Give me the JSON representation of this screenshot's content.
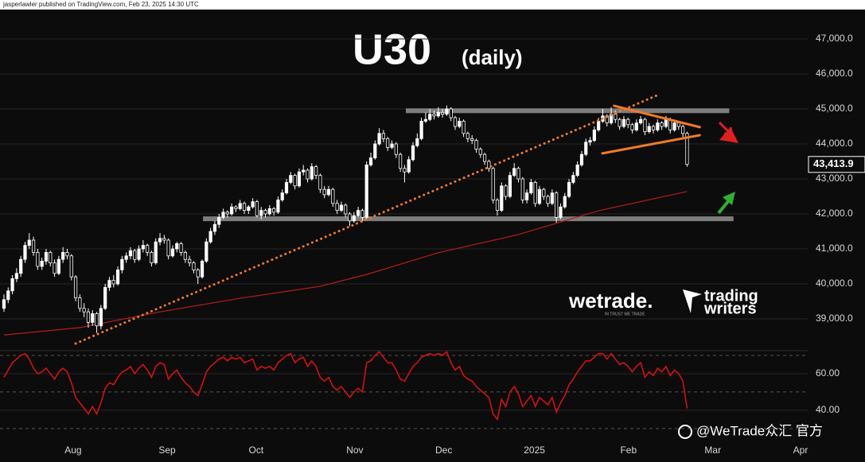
{
  "header": "jasperlawler published on TradingView.com, Feb 23, 2025 14:30 UTC",
  "branding": {
    "wetrade": "wetrade.",
    "tagline": "IN TRUST WE TRADE",
    "trading": "trading",
    "writers": "writers",
    "watermark": "@WeTrade众汇 官方"
  },
  "chart_data": {
    "type": "candlestick",
    "title": "U30",
    "subtitle": "(daily)",
    "xlim": [
      -0.94,
      190.6
    ],
    "xticks": [
      {
        "value": 16.4,
        "label": "Aug"
      },
      {
        "value": 38.7,
        "label": "Sep"
      },
      {
        "value": 59.8,
        "label": "Oct"
      },
      {
        "value": 83.2,
        "label": "Nov"
      },
      {
        "value": 104.3,
        "label": "Dec"
      },
      {
        "value": 125.8,
        "label": "2025"
      },
      {
        "value": 148.1,
        "label": "Feb"
      },
      {
        "value": 168.1,
        "label": "Mar"
      },
      {
        "value": 188.9,
        "label": "Apr"
      }
    ],
    "ylim": [
      38100,
      47600
    ],
    "yticks": [
      {
        "value": 39000,
        "label": "39,000.0"
      },
      {
        "value": 40000,
        "label": "40,000.0"
      },
      {
        "value": 41000,
        "label": "41,000.0"
      },
      {
        "value": 42000,
        "label": "42,000.0"
      },
      {
        "value": 43000,
        "label": "43,000.0"
      },
      {
        "value": 44000,
        "label": "44,000.0"
      },
      {
        "value": 45000,
        "label": "45,000.0"
      },
      {
        "value": 46000,
        "label": "46,000.0"
      },
      {
        "value": 47000,
        "label": "47,000.0"
      }
    ],
    "grid": true,
    "up_color": "#ffffff",
    "down_color": "#000000",
    "wick_color": "#ffffff",
    "last_label": "43,413.9",
    "ohlc": [
      [
        39300,
        39700,
        39200,
        39550
      ],
      [
        39550,
        39900,
        39450,
        39800
      ],
      [
        39800,
        40250,
        39700,
        40150
      ],
      [
        40150,
        40450,
        40050,
        40300
      ],
      [
        40300,
        40800,
        40200,
        40700
      ],
      [
        40700,
        41200,
        40600,
        41100
      ],
      [
        41100,
        41450,
        41000,
        41250
      ],
      [
        41250,
        41350,
        40800,
        40900
      ],
      [
        40900,
        41000,
        40400,
        40500
      ],
      [
        40500,
        40750,
        40400,
        40650
      ],
      [
        40650,
        41000,
        40550,
        40900
      ],
      [
        40900,
        40950,
        40500,
        40600
      ],
      [
        40600,
        40700,
        40200,
        40300
      ],
      [
        40300,
        40800,
        40250,
        40700
      ],
      [
        40700,
        41050,
        40600,
        40900
      ],
      [
        40900,
        41000,
        40700,
        40800
      ],
      [
        40800,
        40850,
        40100,
        40200
      ],
      [
        40200,
        40250,
        39500,
        39600
      ],
      [
        39600,
        39700,
        39200,
        39300
      ],
      [
        39300,
        39450,
        39050,
        39200
      ],
      [
        39200,
        39300,
        38750,
        38900
      ],
      [
        38900,
        39250,
        38800,
        39150
      ],
      [
        39150,
        39200,
        38600,
        38800
      ],
      [
        38800,
        39400,
        38700,
        39300
      ],
      [
        39300,
        40000,
        39250,
        39900
      ],
      [
        39900,
        40200,
        39800,
        40100
      ],
      [
        40100,
        40250,
        39900,
        40000
      ],
      [
        40000,
        40500,
        39950,
        40400
      ],
      [
        40400,
        40800,
        40300,
        40700
      ],
      [
        40700,
        40900,
        40600,
        40800
      ],
      [
        40800,
        41050,
        40700,
        40950
      ],
      [
        40950,
        41000,
        40600,
        40700
      ],
      [
        40700,
        41100,
        40650,
        41000
      ],
      [
        41000,
        41250,
        40900,
        41100
      ],
      [
        41100,
        41150,
        40800,
        40900
      ],
      [
        40900,
        40950,
        40500,
        40600
      ],
      [
        40600,
        41300,
        40550,
        41200
      ],
      [
        41200,
        41450,
        41100,
        41300
      ],
      [
        41300,
        41400,
        41150,
        41250
      ],
      [
        41250,
        41300,
        40700,
        40800
      ],
      [
        40800,
        41100,
        40750,
        41000
      ],
      [
        41000,
        41200,
        40900,
        41150
      ],
      [
        41150,
        41200,
        40800,
        40900
      ],
      [
        40900,
        40950,
        40600,
        40700
      ],
      [
        40700,
        40800,
        40500,
        40600
      ],
      [
        40600,
        40650,
        40300,
        40400
      ],
      [
        40400,
        40450,
        40000,
        40200
      ],
      [
        40200,
        40700,
        40150,
        40650
      ],
      [
        40650,
        41300,
        40600,
        41200
      ],
      [
        41200,
        41600,
        41150,
        41500
      ],
      [
        41500,
        41800,
        41400,
        41700
      ],
      [
        41700,
        42000,
        41600,
        41900
      ],
      [
        41900,
        42150,
        41850,
        42050
      ],
      [
        42050,
        42100,
        41900,
        42000
      ],
      [
        42000,
        42300,
        41950,
        42200
      ],
      [
        42200,
        42250,
        42050,
        42150
      ],
      [
        42150,
        42400,
        42100,
        42300
      ],
      [
        42300,
        42350,
        42000,
        42100
      ],
      [
        42100,
        42250,
        42000,
        42200
      ],
      [
        42200,
        42450,
        42150,
        42350
      ],
      [
        42350,
        42400,
        41900,
        41950
      ],
      [
        41950,
        42200,
        41850,
        42100
      ],
      [
        42100,
        42150,
        41900,
        42000
      ],
      [
        42000,
        42250,
        41950,
        42150
      ],
      [
        42150,
        42200,
        41950,
        42050
      ],
      [
        42050,
        42500,
        42000,
        42400
      ],
      [
        42400,
        42700,
        42350,
        42600
      ],
      [
        42600,
        43000,
        42550,
        42900
      ],
      [
        42900,
        43200,
        42850,
        43100
      ],
      [
        43100,
        43150,
        42700,
        42800
      ],
      [
        42800,
        43300,
        42750,
        43200
      ],
      [
        43200,
        43400,
        43100,
        43250
      ],
      [
        43250,
        43300,
        42900,
        43000
      ],
      [
        43000,
        43450,
        42950,
        43350
      ],
      [
        43350,
        43400,
        43000,
        43100
      ],
      [
        43100,
        43150,
        42600,
        42700
      ],
      [
        42700,
        42800,
        42450,
        42550
      ],
      [
        42550,
        42800,
        42500,
        42700
      ],
      [
        42700,
        42750,
        42200,
        42300
      ],
      [
        42300,
        42400,
        42000,
        42100
      ],
      [
        42100,
        42350,
        42050,
        42250
      ],
      [
        42250,
        42300,
        41900,
        42000
      ],
      [
        42000,
        42050,
        41650,
        41800
      ],
      [
        41800,
        42050,
        41750,
        41950
      ],
      [
        41950,
        42200,
        41900,
        42100
      ],
      [
        42100,
        42150,
        41800,
        41900
      ],
      [
        41900,
        43500,
        41850,
        43400
      ],
      [
        43400,
        43750,
        43350,
        43600
      ],
      [
        43600,
        44100,
        43550,
        44000
      ],
      [
        44000,
        44450,
        43950,
        44300
      ],
      [
        44300,
        44400,
        44050,
        44150
      ],
      [
        44150,
        44200,
        43800,
        43900
      ],
      [
        43900,
        44100,
        43850,
        44000
      ],
      [
        44000,
        44050,
        43600,
        43700
      ],
      [
        43700,
        43750,
        43200,
        43300
      ],
      [
        43300,
        43400,
        42900,
        43200
      ],
      [
        43200,
        43650,
        43150,
        43550
      ],
      [
        43550,
        44050,
        43500,
        43950
      ],
      [
        43950,
        44300,
        43900,
        44150
      ],
      [
        44150,
        44750,
        44100,
        44650
      ],
      [
        44650,
        44900,
        44600,
        44700
      ],
      [
        44700,
        45000,
        44650,
        44850
      ],
      [
        44850,
        44950,
        44700,
        44800
      ],
      [
        44800,
        45050,
        44750,
        44900
      ],
      [
        44900,
        45000,
        44750,
        44850
      ],
      [
        44850,
        45100,
        44800,
        45000
      ],
      [
        45000,
        45050,
        44650,
        44750
      ],
      [
        44750,
        44800,
        44400,
        44500
      ],
      [
        44500,
        44750,
        44450,
        44650
      ],
      [
        44650,
        44700,
        44200,
        44300
      ],
      [
        44300,
        44350,
        44050,
        44150
      ],
      [
        44150,
        44250,
        44000,
        44100
      ],
      [
        44100,
        44150,
        43750,
        43850
      ],
      [
        43850,
        43900,
        43600,
        43700
      ],
      [
        43700,
        43750,
        43400,
        43500
      ],
      [
        43500,
        43550,
        43200,
        43300
      ],
      [
        43300,
        43350,
        42300,
        42400
      ],
      [
        42400,
        42450,
        41950,
        42100
      ],
      [
        42100,
        42900,
        42050,
        42800
      ],
      [
        42800,
        42850,
        42400,
        42500
      ],
      [
        42500,
        43200,
        42450,
        43100
      ],
      [
        43100,
        43450,
        43050,
        43300
      ],
      [
        43300,
        43350,
        42900,
        43000
      ],
      [
        43000,
        43050,
        42300,
        42400
      ],
      [
        42400,
        42700,
        42300,
        42600
      ],
      [
        42600,
        43000,
        42550,
        42900
      ],
      [
        42900,
        42950,
        42200,
        42300
      ],
      [
        42300,
        42800,
        42250,
        42700
      ],
      [
        42700,
        42750,
        42400,
        42500
      ],
      [
        42500,
        42550,
        42200,
        42300
      ],
      [
        42300,
        42700,
        42250,
        42600
      ],
      [
        42600,
        42650,
        41750,
        41900
      ],
      [
        41900,
        42300,
        41850,
        42200
      ],
      [
        42200,
        42600,
        42150,
        42500
      ],
      [
        42500,
        43000,
        42450,
        42900
      ],
      [
        42900,
        43200,
        42850,
        43100
      ],
      [
        43100,
        43500,
        43050,
        43400
      ],
      [
        43400,
        43800,
        43350,
        43700
      ],
      [
        43700,
        44150,
        43650,
        44050
      ],
      [
        44050,
        44200,
        43950,
        44100
      ],
      [
        44100,
        44500,
        44050,
        44400
      ],
      [
        44400,
        44750,
        44350,
        44650
      ],
      [
        44650,
        45000,
        44600,
        44800
      ],
      [
        44800,
        44850,
        44500,
        44600
      ],
      [
        44600,
        45050,
        44550,
        44850
      ],
      [
        44850,
        44950,
        44600,
        44700
      ],
      [
        44700,
        44750,
        44400,
        44500
      ],
      [
        44500,
        44800,
        44450,
        44700
      ],
      [
        44700,
        44750,
        44450,
        44550
      ],
      [
        44550,
        44600,
        44300,
        44400
      ],
      [
        44400,
        44700,
        44350,
        44600
      ],
      [
        44600,
        44800,
        44550,
        44700
      ],
      [
        44700,
        44750,
        44250,
        44350
      ],
      [
        44350,
        44600,
        44300,
        44500
      ],
      [
        44500,
        44550,
        44300,
        44400
      ],
      [
        44400,
        44700,
        44350,
        44600
      ],
      [
        44600,
        44650,
        44400,
        44500
      ],
      [
        44500,
        44800,
        44450,
        44700
      ],
      [
        44700,
        44750,
        44300,
        44400
      ],
      [
        44400,
        44700,
        44350,
        44600
      ],
      [
        44600,
        44650,
        44400,
        44500
      ],
      [
        44500,
        44550,
        44200,
        44300
      ],
      [
        44300,
        44350,
        43350,
        43413.9
      ]
    ],
    "ma": {
      "color": "#b71c1c",
      "x": [
        0,
        18,
        37,
        56,
        75,
        86,
        103,
        122,
        141,
        162
      ],
      "values": [
        38540,
        38750,
        39200,
        39590,
        39930,
        40270,
        40890,
        41410,
        42090,
        42640
      ]
    },
    "level_color": "#7d7d7d",
    "levels": [
      {
        "value": 44950,
        "x": [
          95.3,
          172
        ]
      },
      {
        "value": 41860,
        "x": [
          47.2,
          173
        ]
      }
    ],
    "trend_color": "#f07a24",
    "trendlines": [
      {
        "x": [
          17,
          155.3
        ],
        "values": [
          38295,
          45410
        ],
        "dotted": true
      },
      {
        "x": [
          144.7,
          165
        ],
        "values": [
          45090,
          44480
        ],
        "dotted": false
      },
      {
        "x": [
          141.9,
          165
        ],
        "values": [
          43730,
          44250
        ],
        "dotted": false
      }
    ],
    "rsi": {
      "color": "#e01010",
      "ylim": [
        25.6,
        72.6
      ],
      "yticks": [
        {
          "value": 60,
          "label": "60.00"
        },
        {
          "value": 40,
          "label": "40.00"
        }
      ],
      "levels": [
        70,
        50,
        30
      ],
      "values": [
        58,
        62,
        66,
        68,
        70,
        71,
        68,
        63,
        60,
        61,
        63,
        60,
        57,
        61,
        63,
        61,
        55,
        47,
        44,
        41,
        38,
        42,
        38,
        44,
        52,
        55,
        54,
        58,
        61,
        62,
        64,
        60,
        63,
        65,
        62,
        58,
        64,
        66,
        65,
        57,
        60,
        62,
        58,
        55,
        53,
        50,
        48,
        54,
        61,
        64,
        66,
        68,
        69,
        67,
        69,
        68,
        69,
        66,
        67,
        68,
        62,
        64,
        63,
        64,
        62,
        66,
        68,
        70,
        71,
        66,
        68,
        69,
        64,
        67,
        64,
        58,
        56,
        58,
        53,
        51,
        53,
        50,
        47,
        50,
        52,
        50,
        66,
        67,
        70,
        72,
        69,
        66,
        66,
        62,
        57,
        56,
        60,
        64,
        66,
        69,
        70,
        71,
        70,
        71,
        70,
        72,
        66,
        62,
        64,
        59,
        57,
        56,
        53,
        51,
        49,
        47,
        38,
        35,
        46,
        42,
        50,
        53,
        49,
        42,
        45,
        48,
        42,
        47,
        45,
        43,
        47,
        39,
        44,
        48,
        54,
        57,
        61,
        64,
        67,
        67,
        69,
        71,
        71,
        68,
        71,
        68,
        65,
        66,
        64,
        61,
        64,
        66,
        58,
        61,
        59,
        63,
        61,
        64,
        59,
        62,
        60,
        56,
        41
      ]
    }
  }
}
